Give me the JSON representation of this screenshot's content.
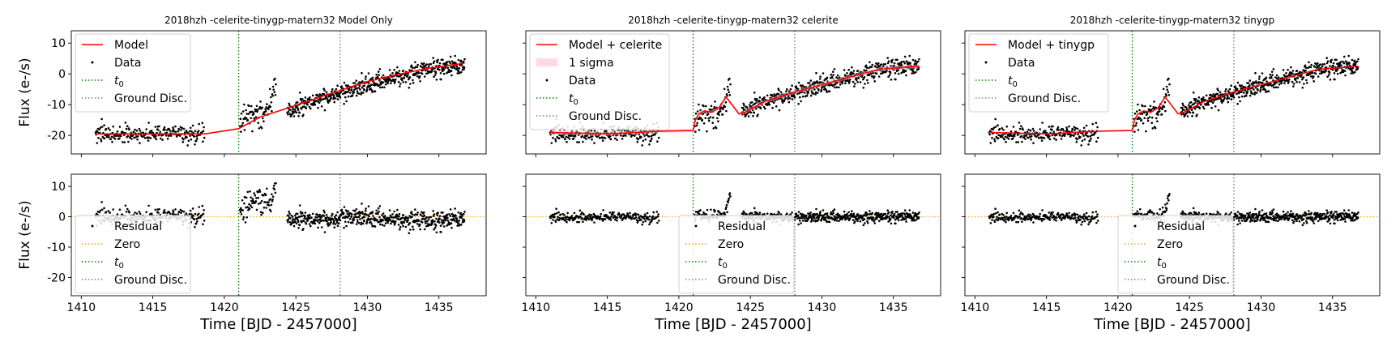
{
  "figure": {
    "xlabel": "Time [BJD - 2457000]",
    "ylabel": "Flux (e-/s)"
  },
  "chart_data": [
    {
      "type": "scatter",
      "title": "2018hzh -celerite-tinygp-matern32 Model Only",
      "panel": "top",
      "xlim": [
        1409.3,
        1438.3
      ],
      "ylim": [
        -26,
        14
      ],
      "yticks": [
        -20,
        -10,
        0,
        10
      ],
      "xticks": [
        1410,
        1415,
        1420,
        1425,
        1430,
        1435
      ],
      "ylabel": "Flux (e-/s)",
      "legend": "upper-left",
      "model": "smooth",
      "legend_entries": [
        {
          "label": "Model",
          "kind": "line",
          "color": "#ff0000"
        },
        {
          "label": "Data",
          "kind": "dot",
          "color": "#000000"
        },
        {
          "label": "t0",
          "kind": "green",
          "color": "#008000"
        },
        {
          "label": "Ground Disc.",
          "kind": "gray",
          "color": "#808080"
        }
      ]
    },
    {
      "type": "scatter",
      "title": "2018hzh -celerite-tinygp-matern32 celerite",
      "panel": "top",
      "xlim": [
        1409.3,
        1438.3
      ],
      "ylim": [
        -26,
        14
      ],
      "yticks": [
        -20,
        -10,
        0,
        10
      ],
      "xticks": [
        1410,
        1415,
        1420,
        1425,
        1430,
        1435
      ],
      "legend": "upper-left",
      "model": "gp",
      "legend_entries": [
        {
          "label": "Model + celerite",
          "kind": "line",
          "color": "#ff0000"
        },
        {
          "label": "1 sigma",
          "kind": "band",
          "color": "#ffc0cb"
        },
        {
          "label": "Data",
          "kind": "dot",
          "color": "#000000"
        },
        {
          "label": "t0",
          "kind": "green",
          "color": "#008000"
        },
        {
          "label": "Ground Disc.",
          "kind": "gray",
          "color": "#808080"
        }
      ]
    },
    {
      "type": "scatter",
      "title": "2018hzh -celerite-tinygp-matern32 tinygp",
      "panel": "top",
      "xlim": [
        1409.3,
        1438.3
      ],
      "ylim": [
        -26,
        14
      ],
      "yticks": [
        -20,
        -10,
        0,
        10
      ],
      "xticks": [
        1410,
        1415,
        1420,
        1425,
        1430,
        1435
      ],
      "legend": "upper-left",
      "model": "gp",
      "legend_entries": [
        {
          "label": "Model + tinygp",
          "kind": "line",
          "color": "#ff0000"
        },
        {
          "label": "Data",
          "kind": "dot",
          "color": "#000000"
        },
        {
          "label": "t0",
          "kind": "green",
          "color": "#008000"
        },
        {
          "label": "Ground Disc.",
          "kind": "gray",
          "color": "#808080"
        }
      ]
    },
    {
      "type": "scatter",
      "panel": "bottom",
      "xlim": [
        1409.3,
        1438.3
      ],
      "ylim": [
        -26,
        14
      ],
      "yticks": [
        -20,
        -10,
        0,
        10
      ],
      "xticks": [
        1410,
        1415,
        1420,
        1425,
        1430,
        1435
      ],
      "ylabel": "Flux (e-/s)",
      "xlabel": "Time [BJD - 2457000]",
      "legend": "lower-left",
      "residual": "smooth",
      "legend_entries": [
        {
          "label": "Residual",
          "kind": "dot",
          "color": "#000000"
        },
        {
          "label": "Zero",
          "kind": "orange",
          "color": "#ffa500"
        },
        {
          "label": "t0",
          "kind": "green",
          "color": "#008000"
        },
        {
          "label": "Ground Disc.",
          "kind": "gray",
          "color": "#808080"
        }
      ]
    },
    {
      "type": "scatter",
      "panel": "bottom",
      "xlim": [
        1409.3,
        1438.3
      ],
      "ylim": [
        -26,
        14
      ],
      "yticks": [
        -20,
        -10,
        0,
        10
      ],
      "xticks": [
        1410,
        1415,
        1420,
        1425,
        1430,
        1435
      ],
      "xlabel": "Time [BJD - 2457000]",
      "legend": "lower-center",
      "residual": "gp",
      "legend_entries": [
        {
          "label": "Residual",
          "kind": "dot",
          "color": "#000000"
        },
        {
          "label": "Zero",
          "kind": "orange",
          "color": "#ffa500"
        },
        {
          "label": "t0",
          "kind": "green",
          "color": "#008000"
        },
        {
          "label": "Ground Disc.",
          "kind": "gray",
          "color": "#808080"
        }
      ]
    },
    {
      "type": "scatter",
      "panel": "bottom",
      "xlim": [
        1409.3,
        1438.3
      ],
      "ylim": [
        -26,
        14
      ],
      "yticks": [
        -20,
        -10,
        0,
        10
      ],
      "xticks": [
        1410,
        1415,
        1420,
        1425,
        1430,
        1435
      ],
      "xlabel": "Time [BJD - 2457000]",
      "legend": "lower-center",
      "residual": "gp",
      "legend_entries": [
        {
          "label": "Residual",
          "kind": "dot",
          "color": "#000000"
        },
        {
          "label": "Zero",
          "kind": "orange",
          "color": "#ffa500"
        },
        {
          "label": "t0",
          "kind": "green",
          "color": "#008000"
        },
        {
          "label": "Ground Disc.",
          "kind": "gray",
          "color": "#808080"
        }
      ]
    }
  ],
  "reference_lines": {
    "t0": 1421.0,
    "ground_disc": 1428.1,
    "zero": 0
  },
  "data_segments": [
    {
      "start": 1411.0,
      "end": 1418.6,
      "level": -19.5,
      "n": 230
    },
    {
      "start": 1421.1,
      "end": 1423.6,
      "level": -14.0,
      "n": 80
    },
    {
      "start": 1424.4,
      "end": 1436.8,
      "level": 0.0,
      "n": 520
    }
  ],
  "model_smooth": {
    "x": [
      1411,
      1418.6,
      1421.0,
      1422.5,
      1424.5,
      1426,
      1428,
      1430,
      1432,
      1434,
      1436.8
    ],
    "y": [
      -19.5,
      -19.5,
      -17.8,
      -14.0,
      -11.0,
      -8.6,
      -5.5,
      -2.5,
      -0.3,
      1.6,
      3.5
    ]
  },
  "model_gp": {
    "x": [
      1411,
      1415,
      1418.6,
      1421.0,
      1421.15,
      1421.4,
      1421.8,
      1422.3,
      1422.8,
      1423.3,
      1424.2,
      1424.6,
      1426,
      1428,
      1430,
      1432,
      1434,
      1436.8
    ],
    "y": [
      -19.0,
      -19.5,
      -18.6,
      -18.4,
      -15.0,
      -13.0,
      -12.0,
      -12.5,
      -11.0,
      -7.5,
      -13.0,
      -12.5,
      -9.0,
      -6.0,
      -3.5,
      -1.0,
      1.5,
      2.5
    ]
  },
  "residual_spike": {
    "start": 1421.2,
    "end": 1423.6,
    "smooth_peak": 11.0,
    "gp_peak": 8.7
  }
}
